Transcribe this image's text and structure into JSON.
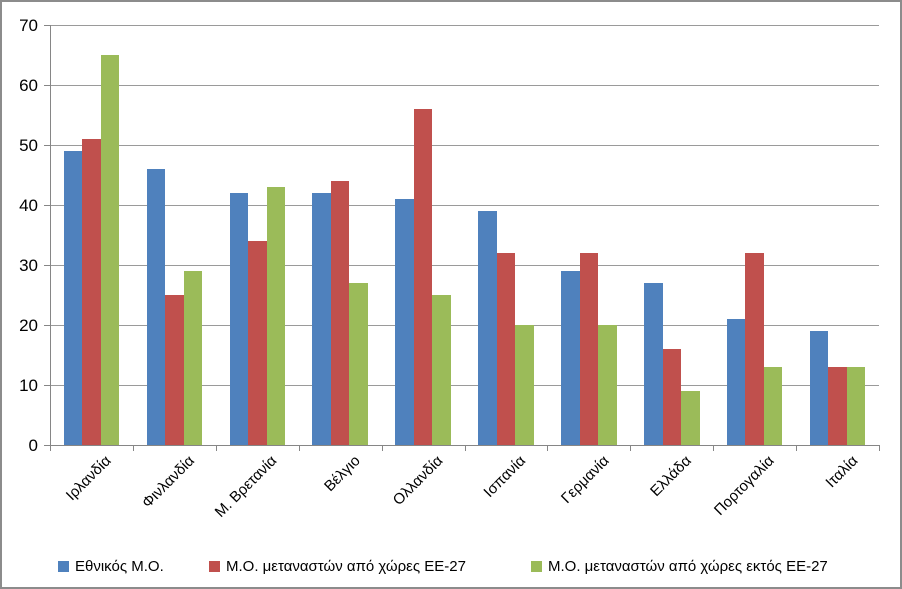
{
  "chart_data": {
    "type": "bar",
    "title": "",
    "xlabel": "",
    "ylabel": "",
    "categories": [
      "Ιρλανδία",
      "Φινλανδία",
      "Μ. Βρετανία",
      "Βέλγιο",
      "Ολλανδία",
      "Ισπανία",
      "Γερμανία",
      "Ελλάδα",
      "Πορτογαλία",
      "Ιταλία"
    ],
    "series": [
      {
        "name": "Εθνικός Μ.Ο.",
        "color": "#4F81BD",
        "values": [
          49,
          46,
          42,
          42,
          41,
          39,
          29,
          27,
          21,
          19
        ]
      },
      {
        "name": "Μ.Ο. μεταναστών από χώρες ΕΕ-27",
        "color": "#C0504D",
        "values": [
          51,
          25,
          34,
          44,
          56,
          32,
          32,
          16,
          32,
          13
        ]
      },
      {
        "name": "Μ.Ο. μεταναστών από χώρες εκτός ΕΕ-27",
        "color": "#9BBB59",
        "values": [
          65,
          29,
          43,
          27,
          25,
          20,
          20,
          9,
          13,
          13
        ]
      }
    ],
    "ylim": [
      0,
      70
    ],
    "yticks": [
      0,
      10,
      20,
      30,
      40,
      50,
      60,
      70
    ],
    "grid": true,
    "legend_position": "bottom",
    "legend_x_offsets": [
      56,
      207,
      529
    ]
  },
  "frame": {
    "border_color": "#8c8c8c",
    "background": "#ffffff",
    "gridline_color": "#9a9a9a",
    "axis_color": "#868686"
  }
}
